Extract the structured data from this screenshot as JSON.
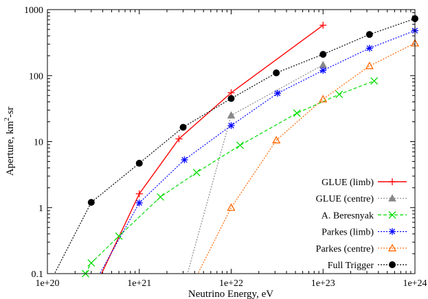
{
  "chart_data": {
    "type": "line",
    "xscale": "log",
    "yscale": "log",
    "xlim": [
      1e+20,
      1e+24
    ],
    "ylim": [
      0.1,
      1000
    ],
    "xlabel": "Neutrino Energy, eV",
    "ylabel_prefix": "Aperture, km",
    "ylabel_sup": "2",
    "ylabel_suffix": "-sr",
    "xticks": [
      {
        "value": 1e+20,
        "label": "1e+20"
      },
      {
        "value": 1e+21,
        "label": "1e+21"
      },
      {
        "value": 1e+22,
        "label": "1e+22"
      },
      {
        "value": 1e+23,
        "label": "1e+23"
      },
      {
        "value": 1e+24,
        "label": "1e+24"
      }
    ],
    "yticks": [
      {
        "value": 0.1,
        "label": "0.1"
      },
      {
        "value": 1,
        "label": "1"
      },
      {
        "value": 10,
        "label": "10"
      },
      {
        "value": 100,
        "label": "100"
      },
      {
        "value": 1000,
        "label": "1000"
      }
    ],
    "grid": false,
    "legend_position": "bottom-right",
    "series": [
      {
        "name": "GLUE (limb)",
        "color": "#ff0000",
        "marker": "plus",
        "dash": "solid",
        "points": [
          [
            3.6e+20,
            0.08
          ],
          [
            1e+21,
            1.62
          ],
          [
            2.7e+21,
            11.0
          ],
          [
            1e+22,
            55.0
          ],
          [
            1e+23,
            580.0
          ]
        ]
      },
      {
        "name": "GLUE (centre)",
        "color": "#888888",
        "marker": "triangle-filled",
        "dash": "dotted",
        "points": [
          [
            3.2e+21,
            0.08
          ],
          [
            1e+22,
            25.0
          ],
          [
            1e+23,
            145.0
          ]
        ]
      },
      {
        "name": "A. Beresnyak",
        "color": "#00dd00",
        "marker": "x",
        "dash": "dashed",
        "points": [
          [
            2.6e+20,
            0.1
          ],
          [
            3e+20,
            0.145
          ],
          [
            6e+20,
            0.37
          ],
          [
            1.7e+21,
            1.45
          ],
          [
            4.2e+21,
            3.4
          ],
          [
            1.25e+22,
            8.8
          ],
          [
            5.2e+22,
            27.0
          ],
          [
            1.5e+23,
            52.0
          ],
          [
            3.6e+23,
            83.0
          ]
        ]
      },
      {
        "name": "Parkes (limb)",
        "color": "#0000ff",
        "marker": "star",
        "dash": "dotted",
        "points": [
          [
            3.4e+20,
            0.08
          ],
          [
            1e+21,
            1.18
          ],
          [
            3.1e+21,
            5.3
          ],
          [
            1e+22,
            17.5
          ],
          [
            3.2e+22,
            54.0
          ],
          [
            1e+23,
            120.0
          ],
          [
            3.2e+23,
            260.0
          ],
          [
            1e+24,
            480.0
          ]
        ]
      },
      {
        "name": "Parkes (centre)",
        "color": "#ff6600",
        "marker": "triangle-open",
        "dash": "dotted",
        "points": [
          [
            4e+21,
            0.08
          ],
          [
            1e+22,
            1.0
          ],
          [
            3.1e+22,
            10.5
          ],
          [
            1e+23,
            44.0
          ],
          [
            3.2e+23,
            140.0
          ],
          [
            1e+24,
            310.0
          ]
        ]
      },
      {
        "name": "Full Trigger",
        "color": "#000000",
        "marker": "circle-filled",
        "dash": "dotted",
        "points": [
          [
            1.1e+20,
            0.08
          ],
          [
            3e+20,
            1.2
          ],
          [
            1e+21,
            4.7
          ],
          [
            3e+21,
            16.5
          ],
          [
            1e+22,
            45.0
          ],
          [
            3.1e+22,
            110.0
          ],
          [
            1e+23,
            210.0
          ],
          [
            3.2e+23,
            420.0
          ],
          [
            1e+24,
            730.0
          ]
        ]
      }
    ]
  }
}
